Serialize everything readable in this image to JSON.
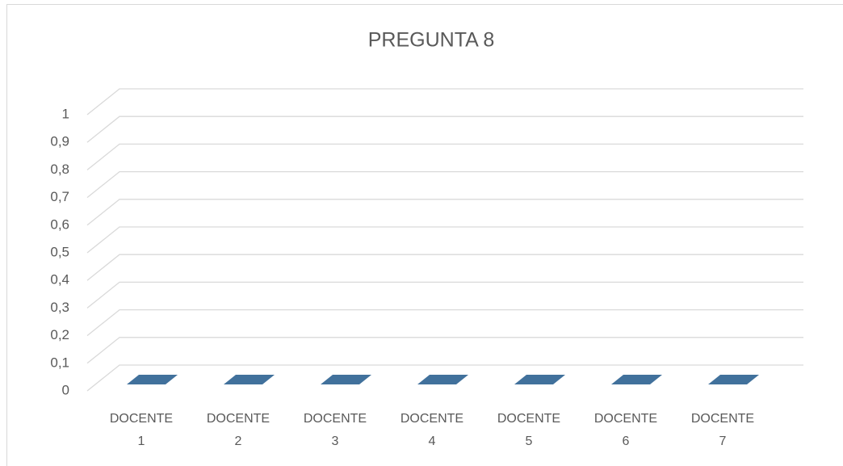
{
  "chart_data": {
    "type": "bar3d",
    "title": "PREGUNTA 8",
    "categories": [
      "DOCENTE 1",
      "DOCENTE 2",
      "DOCENTE 3",
      "DOCENTE 4",
      "DOCENTE 5",
      "DOCENTE 6",
      "DOCENTE 7"
    ],
    "values": [
      0,
      0,
      0,
      0,
      0,
      0,
      0
    ],
    "color": "#41719c",
    "ylim": [
      0,
      1
    ],
    "yticks": [
      0,
      {
        "value": 0.1,
        "label": "0,1"
      },
      {
        "value": 0.2,
        "label": "0,2"
      },
      {
        "value": 0.3,
        "label": "0,3"
      },
      {
        "value": 0.4,
        "label": "0,4"
      },
      {
        "value": 0.5,
        "label": "0,5"
      },
      {
        "value": 0.6,
        "label": "0,6"
      },
      {
        "value": 0.7,
        "label": "0,7"
      },
      {
        "value": 0.8,
        "label": "0,8"
      },
      {
        "value": 0.9,
        "label": "0,9"
      },
      1
    ],
    "grid": true
  }
}
